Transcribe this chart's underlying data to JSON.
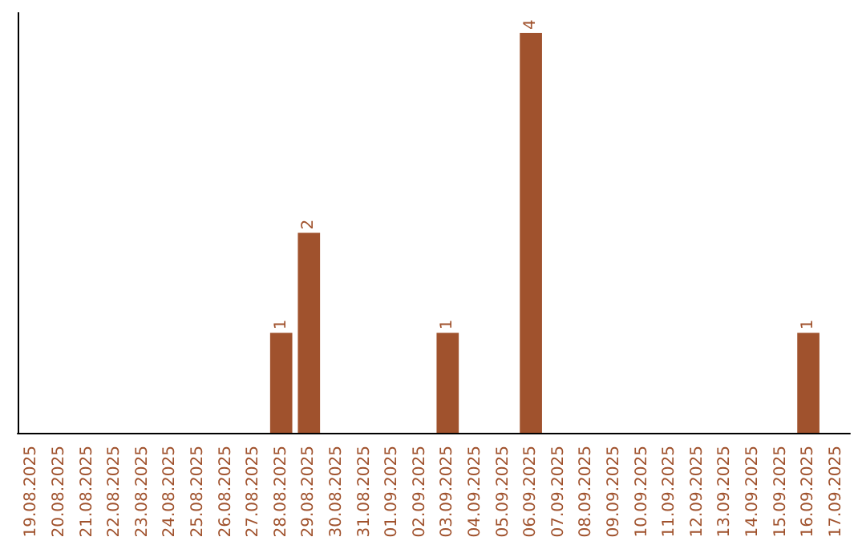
{
  "chart_data": {
    "type": "bar",
    "categories": [
      "19.08.2025",
      "20.08.2025",
      "21.08.2025",
      "22.08.2025",
      "23.08.2025",
      "24.08.2025",
      "25.08.2025",
      "26.08.2025",
      "27.08.2025",
      "28.08.2025",
      "29.08.2025",
      "30.08.2025",
      "31.08.2025",
      "01.09.2025",
      "02.09.2025",
      "03.09.2025",
      "04.09.2025",
      "05.09.2025",
      "06.09.2025",
      "07.09.2025",
      "08.09.2025",
      "09.09.2025",
      "10.09.2025",
      "11.09.2025",
      "12.09.2025",
      "13.09.2025",
      "14.09.2025",
      "15.09.2025",
      "16.09.2025",
      "17.09.2025"
    ],
    "values": [
      0,
      0,
      0,
      0,
      0,
      0,
      0,
      0,
      0,
      1,
      2,
      0,
      0,
      0,
      0,
      1,
      0,
      0,
      4,
      0,
      0,
      0,
      0,
      0,
      0,
      0,
      0,
      0,
      1,
      0
    ],
    "value_labels": [
      null,
      null,
      null,
      null,
      null,
      null,
      null,
      null,
      null,
      "1",
      "2",
      null,
      null,
      null,
      null,
      "1",
      null,
      null,
      "4",
      null,
      null,
      null,
      null,
      null,
      null,
      null,
      null,
      null,
      "1",
      null
    ],
    "color": "#a0522d",
    "ylim": [
      0,
      4.2
    ],
    "tick_labels": "x"
  }
}
